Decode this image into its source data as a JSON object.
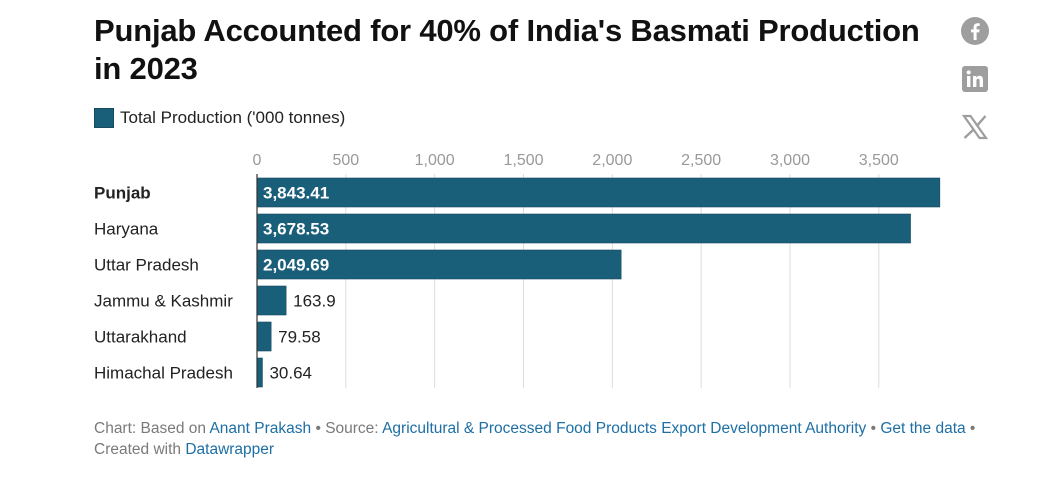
{
  "title": "Punjab Accounted for 40% of India's Basmati Production in 2023",
  "social": {
    "facebook": "facebook-icon",
    "linkedin": "linkedin-icon",
    "x": "x-twitter-icon"
  },
  "colors": {
    "bar": "#1a5f7a",
    "grid": "#dcdcdc",
    "tick": "#999999",
    "link": "#1d6fa5"
  },
  "chart_data": {
    "type": "bar",
    "orientation": "horizontal",
    "legend": [
      "Total Production ('000 tonnes)"
    ],
    "categories": [
      "Punjab",
      "Haryana",
      "Uttar Pradesh",
      "Jammu & Kashmir",
      "Uttarakhand",
      "Himachal Pradesh"
    ],
    "highlight": [
      "Punjab"
    ],
    "values": [
      3843.41,
      3678.53,
      2049.69,
      163.9,
      79.58,
      30.64
    ],
    "value_labels": [
      "3,843.41",
      "3,678.53",
      "2,049.69",
      "163.9",
      "79.58",
      "30.64"
    ],
    "ticks": [
      0,
      500,
      1000,
      1500,
      2000,
      2500,
      3000,
      3500
    ],
    "tick_labels": [
      "0",
      "500",
      "1,000",
      "1,500",
      "2,000",
      "2,500",
      "3,000",
      "3,500"
    ],
    "xlim": [
      0,
      3850
    ]
  },
  "footer": {
    "prefix": "Chart: Based on ",
    "author": "Anant Prakash",
    "sep1": " • Source: ",
    "source": "Agricultural & Processed Food Products Export Development Authority",
    "sep2": " • ",
    "get_data": "Get the data",
    "sep3": " • Created with ",
    "tool": "Datawrapper"
  }
}
